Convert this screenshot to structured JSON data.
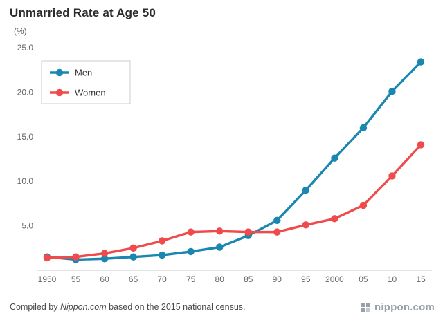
{
  "title": "Unmarried Rate at Age 50",
  "y_unit": "(%)",
  "footer": {
    "prefix": "Compiled by ",
    "source": "Nippon.com",
    "suffix": " based on the 2015 national census."
  },
  "logo": {
    "text": "nippon.com"
  },
  "colors": {
    "men": "#1a87b0",
    "women": "#ef4b4c",
    "axis_line": "#c9c9c9",
    "tick_text": "#666666",
    "legend_border": "#cccccc",
    "legend_text": "#333333"
  },
  "chart_data": {
    "type": "line",
    "title": "Unmarried Rate at Age 50",
    "ylabel": "(%)",
    "xlabel": "",
    "categories": [
      "1950",
      "55",
      "60",
      "65",
      "70",
      "75",
      "80",
      "85",
      "90",
      "95",
      "2000",
      "05",
      "10",
      "15"
    ],
    "series": [
      {
        "name": "Men",
        "color": "#1a87b0",
        "values": [
          1.5,
          1.2,
          1.3,
          1.5,
          1.7,
          2.1,
          2.6,
          3.9,
          5.6,
          9.0,
          12.6,
          16.0,
          20.1,
          23.4
        ]
      },
      {
        "name": "Women",
        "color": "#ef4b4c",
        "values": [
          1.4,
          1.5,
          1.9,
          2.5,
          3.3,
          4.3,
          4.4,
          4.3,
          4.3,
          5.1,
          5.8,
          7.3,
          10.6,
          14.1
        ]
      }
    ],
    "ylim": [
      0,
      25
    ],
    "yticks": [
      "5.0",
      "10.0",
      "15.0",
      "20.0",
      "25.0"
    ],
    "grid": false,
    "legend_position": "top-left"
  }
}
